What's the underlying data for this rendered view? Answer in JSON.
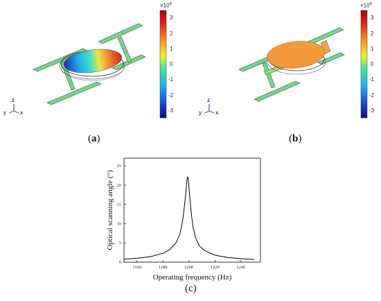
{
  "panels": [
    {
      "label": "a",
      "colorbar": {
        "exponent_base": "×10",
        "exponent_power": "6",
        "ticks": [
          "3",
          "2",
          "1",
          "0",
          "-1",
          "-2",
          "-3"
        ]
      },
      "axes": {
        "x": "x",
        "y": "y",
        "z": "z"
      }
    },
    {
      "label": "b",
      "colorbar": {
        "exponent_base": "×10",
        "exponent_power": "6",
        "ticks": [
          "3",
          "2",
          "1",
          "0",
          "-1",
          "-2",
          "-3"
        ]
      },
      "axes": {
        "x": "x",
        "y": "y",
        "z": "z"
      }
    }
  ],
  "chart_caption": "c",
  "chart_data": {
    "type": "line",
    "xlabel": "Operating frequency (Hz)",
    "ylabel": "Optical scanning angle (°)",
    "xlim": [
      1150,
      1255
    ],
    "ylim": [
      0,
      27
    ],
    "xticks": [
      1160,
      1180,
      1200,
      1220,
      1240
    ],
    "yticks": [
      0,
      5,
      10,
      15,
      20,
      25
    ],
    "grid": false,
    "series": [
      {
        "x": [
          1150,
          1160,
          1170,
          1180,
          1185,
          1190,
          1193,
          1195,
          1196,
          1197,
          1198,
          1198.5,
          1199,
          1199.5,
          1200,
          1201,
          1202,
          1203,
          1205,
          1208,
          1212,
          1220,
          1230,
          1240,
          1250
        ],
        "y": [
          0.8,
          1.0,
          1.4,
          2.3,
          3.2,
          5.0,
          7.3,
          10.5,
          13.0,
          16.2,
          19.6,
          21.3,
          22.2,
          21.5,
          19.5,
          15.3,
          12.0,
          9.4,
          6.4,
          4.2,
          3.0,
          1.8,
          1.2,
          0.9,
          0.7
        ]
      }
    ]
  },
  "colors": {
    "mems_frame": "#79d48e",
    "mirror_uniform": "#f29a3c",
    "line": "#000000"
  }
}
